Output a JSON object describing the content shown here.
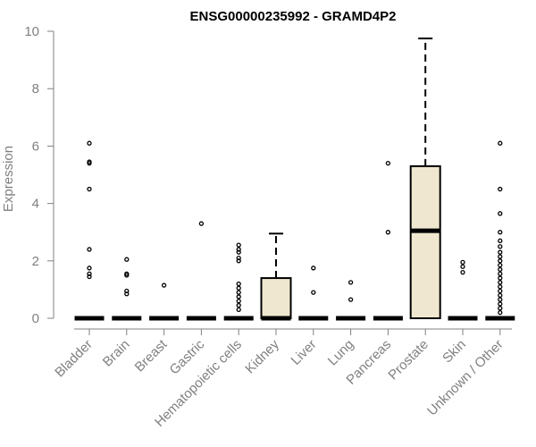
{
  "chart_data": {
    "type": "boxplot",
    "title": "ENSG00000235992 - GRAMD4P2",
    "xlabel": "",
    "ylabel": "Expression",
    "ylim": [
      0,
      10
    ],
    "yticks": [
      0,
      2,
      4,
      6,
      8,
      10
    ],
    "grid": false,
    "box_color": "#efe7cf",
    "categories": [
      "Bladder",
      "Brain",
      "Breast",
      "Gastric",
      "Hematopoietic cells",
      "Kidney",
      "Liver",
      "Lung",
      "Pancreas",
      "Prostate",
      "Skin",
      "Unknown / Other"
    ],
    "boxes": [
      {
        "q1": 0,
        "median": 0,
        "q3": 0,
        "whisker_low": 0,
        "whisker_high": 0,
        "outliers": [
          1.45,
          1.55,
          1.75,
          2.4,
          4.5,
          5.4,
          5.45,
          6.1
        ]
      },
      {
        "q1": 0,
        "median": 0,
        "q3": 0,
        "whisker_low": 0,
        "whisker_high": 0,
        "outliers": [
          0.85,
          0.95,
          1.5,
          1.55,
          2.05
        ]
      },
      {
        "q1": 0,
        "median": 0,
        "q3": 0,
        "whisker_low": 0,
        "whisker_high": 0,
        "outliers": [
          1.15
        ]
      },
      {
        "q1": 0,
        "median": 0,
        "q3": 0,
        "whisker_low": 0,
        "whisker_high": 0,
        "outliers": [
          3.3
        ]
      },
      {
        "q1": 0,
        "median": 0,
        "q3": 0,
        "whisker_low": 0,
        "whisker_high": 0,
        "outliers": [
          0.3,
          0.45,
          0.6,
          0.75,
          0.9,
          1.05,
          1.2,
          2.0,
          2.1,
          2.3,
          2.4,
          2.55
        ]
      },
      {
        "q1": 0,
        "median": 0,
        "q3": 1.4,
        "whisker_low": 0,
        "whisker_high": 2.95,
        "outliers": []
      },
      {
        "q1": 0,
        "median": 0,
        "q3": 0,
        "whisker_low": 0,
        "whisker_high": 0,
        "outliers": [
          0.9,
          1.75
        ]
      },
      {
        "q1": 0,
        "median": 0,
        "q3": 0,
        "whisker_low": 0,
        "whisker_high": 0,
        "outliers": [
          0.65,
          1.25
        ]
      },
      {
        "q1": 0,
        "median": 0,
        "q3": 0,
        "whisker_low": 0,
        "whisker_high": 0,
        "outliers": [
          3.0,
          5.4
        ]
      },
      {
        "q1": 0,
        "median": 3.05,
        "q3": 5.3,
        "whisker_low": 0,
        "whisker_high": 9.75,
        "outliers": []
      },
      {
        "q1": 0,
        "median": 0,
        "q3": 0,
        "whisker_low": 0,
        "whisker_high": 0,
        "outliers": [
          1.6,
          1.8,
          1.95
        ]
      },
      {
        "q1": 0,
        "median": 0,
        "q3": 0,
        "whisker_low": 0,
        "whisker_high": 0,
        "outliers": [
          0.2,
          0.35,
          0.5,
          0.65,
          0.8,
          0.95,
          1.1,
          1.25,
          1.4,
          1.55,
          1.7,
          1.85,
          2.0,
          2.15,
          2.3,
          2.5,
          2.7,
          3.0,
          3.65,
          4.5,
          6.1
        ]
      }
    ]
  }
}
